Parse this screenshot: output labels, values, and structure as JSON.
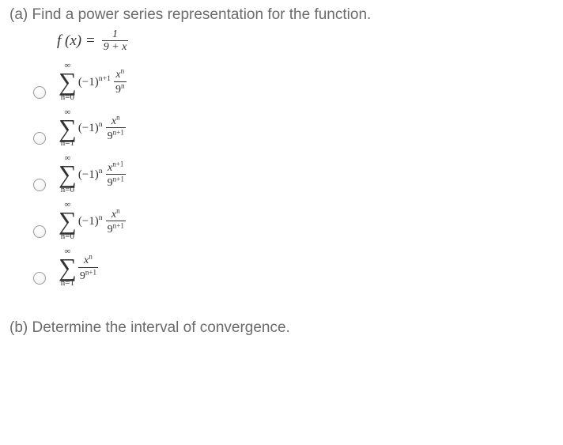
{
  "partA": {
    "label": "(a) Find a power series representation for the function.",
    "function": {
      "lhs": "f (x) =",
      "num": "1",
      "den": "9 + x"
    },
    "options": [
      {
        "upper": "∞",
        "lower": "n=0",
        "coef_base": "(−1)",
        "coef_exp": "n+1",
        "frac_num_base": "x",
        "frac_num_exp": "n",
        "frac_den_base": "9",
        "frac_den_exp": "n"
      },
      {
        "upper": "∞",
        "lower": "n=1",
        "coef_base": "(−1)",
        "coef_exp": "n",
        "frac_num_base": "x",
        "frac_num_exp": "n",
        "frac_den_base": "9",
        "frac_den_exp": "n+1"
      },
      {
        "upper": "∞",
        "lower": "n=0",
        "coef_base": "(−1)",
        "coef_exp": "n",
        "frac_num_base": "x",
        "frac_num_exp": "n+1",
        "frac_den_base": "9",
        "frac_den_exp": "n+1"
      },
      {
        "upper": "∞",
        "lower": "n=0",
        "coef_base": "(−1)",
        "coef_exp": "n",
        "frac_num_base": "x",
        "frac_num_exp": "n",
        "frac_den_base": "9",
        "frac_den_exp": "n+1"
      },
      {
        "upper": "∞",
        "lower": "n=1",
        "coef_base": "",
        "coef_exp": "",
        "frac_num_base": "x",
        "frac_num_exp": "n",
        "frac_den_base": "9",
        "frac_den_exp": "n+1"
      }
    ]
  },
  "partB": {
    "label": "(b) Determine the interval of convergence."
  },
  "style": {
    "text_color": "#6b6b6b",
    "math_color": "#333333",
    "radio_border": "#999999",
    "background": "#ffffff",
    "q_fontsize": 19,
    "math_fontsize": 15
  }
}
